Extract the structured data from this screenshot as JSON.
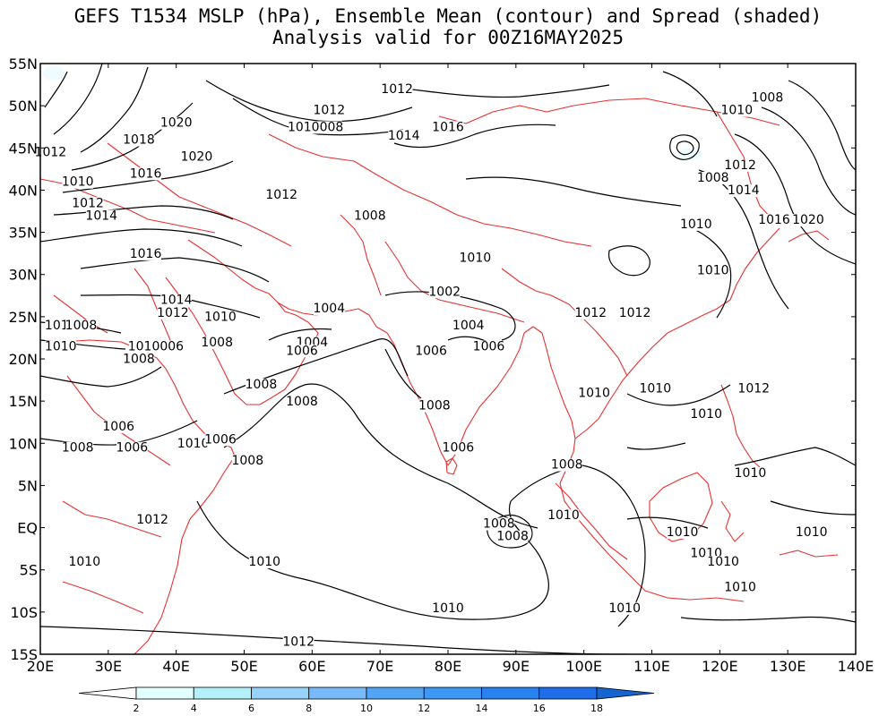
{
  "title_line1": "GEFS T1534 MSLP (hPa), Ensemble Mean (contour) and Spread (shaded)",
  "title_line2": "Analysis valid for 00Z16MAY2025",
  "map": {
    "lon_min": 20,
    "lon_max": 140,
    "lat_min": -15,
    "lat_max": 55,
    "lat_labels": [
      "55N",
      "50N",
      "45N",
      "40N",
      "35N",
      "30N",
      "25N",
      "20N",
      "15N",
      "10N",
      "5N",
      "EQ",
      "5S",
      "10S",
      "15S"
    ],
    "lon_labels": [
      "20E",
      "30E",
      "40E",
      "50E",
      "60E",
      "70E",
      "80E",
      "90E",
      "100E",
      "110E",
      "120E",
      "130E",
      "140E"
    ]
  },
  "contour_labels": [
    {
      "text": "1012",
      "lon": 72.5,
      "lat": 51.5
    },
    {
      "text": "1012",
      "lon": 62.5,
      "lat": 49.0
    },
    {
      "text": "1010008",
      "lon": 60.5,
      "lat": 47.0
    },
    {
      "text": "1014",
      "lon": 73.5,
      "lat": 46.0
    },
    {
      "text": "1016",
      "lon": 80.0,
      "lat": 47.0
    },
    {
      "text": "1020",
      "lon": 40.0,
      "lat": 47.5
    },
    {
      "text": "1018",
      "lon": 34.5,
      "lat": 45.5
    },
    {
      "text": "1020",
      "lon": 43.0,
      "lat": 43.5
    },
    {
      "text": "1016",
      "lon": 35.5,
      "lat": 41.5
    },
    {
      "text": "1012",
      "lon": 21.5,
      "lat": 44.0
    },
    {
      "text": "1010",
      "lon": 25.5,
      "lat": 40.5
    },
    {
      "text": "1012",
      "lon": 27.0,
      "lat": 38.0
    },
    {
      "text": "1014",
      "lon": 29.0,
      "lat": 36.5
    },
    {
      "text": "1012",
      "lon": 55.5,
      "lat": 39.0
    },
    {
      "text": "1008",
      "lon": 68.5,
      "lat": 36.5
    },
    {
      "text": "1016",
      "lon": 35.5,
      "lat": 32.0
    },
    {
      "text": "1014",
      "lon": 40.0,
      "lat": 26.5
    },
    {
      "text": "1012",
      "lon": 39.5,
      "lat": 25.0
    },
    {
      "text": "1010",
      "lon": 46.5,
      "lat": 24.5
    },
    {
      "text": "1010",
      "lon": 23.0,
      "lat": 23.5
    },
    {
      "text": "1008",
      "lon": 26.0,
      "lat": 23.5
    },
    {
      "text": "1010",
      "lon": 23.0,
      "lat": 21.0
    },
    {
      "text": "1010006",
      "lon": 37.0,
      "lat": 21.0
    },
    {
      "text": "1008",
      "lon": 46.0,
      "lat": 21.5
    },
    {
      "text": "1008",
      "lon": 34.5,
      "lat": 19.5
    },
    {
      "text": "1004",
      "lon": 62.5,
      "lat": 25.5
    },
    {
      "text": "1004",
      "lon": 60.0,
      "lat": 21.5
    },
    {
      "text": "1006",
      "lon": 58.5,
      "lat": 20.5
    },
    {
      "text": "1002",
      "lon": 79.5,
      "lat": 27.5
    },
    {
      "text": "1004",
      "lon": 83.0,
      "lat": 23.5
    },
    {
      "text": "1006",
      "lon": 77.5,
      "lat": 20.5
    },
    {
      "text": "1006",
      "lon": 86.0,
      "lat": 21.0
    },
    {
      "text": "1008",
      "lon": 52.5,
      "lat": 16.5
    },
    {
      "text": "1008",
      "lon": 58.5,
      "lat": 14.5
    },
    {
      "text": "1008",
      "lon": 78.0,
      "lat": 14.0
    },
    {
      "text": "1006",
      "lon": 31.5,
      "lat": 11.5
    },
    {
      "text": "1010",
      "lon": 42.5,
      "lat": 9.5
    },
    {
      "text": "1006",
      "lon": 46.5,
      "lat": 10.0
    },
    {
      "text": "1008",
      "lon": 25.5,
      "lat": 9.0
    },
    {
      "text": "1006",
      "lon": 33.5,
      "lat": 9.0
    },
    {
      "text": "1008",
      "lon": 50.5,
      "lat": 7.5
    },
    {
      "text": "1006",
      "lon": 81.5,
      "lat": 9.0
    },
    {
      "text": "1008",
      "lon": 97.5,
      "lat": 7.0
    },
    {
      "text": "1010",
      "lon": 97.0,
      "lat": 1.0
    },
    {
      "text": "1012",
      "lon": 36.5,
      "lat": 0.5
    },
    {
      "text": "1008",
      "lon": 87.5,
      "lat": 0.0
    },
    {
      "text": "1008",
      "lon": 89.5,
      "lat": -1.5
    },
    {
      "text": "1010",
      "lon": 26.5,
      "lat": -4.5
    },
    {
      "text": "1010",
      "lon": 53.0,
      "lat": -4.5
    },
    {
      "text": "1010",
      "lon": 80.0,
      "lat": -10.0
    },
    {
      "text": "1010",
      "lon": 106.0,
      "lat": -10.0
    },
    {
      "text": "1012",
      "lon": 58.0,
      "lat": -14.0
    },
    {
      "text": "1010",
      "lon": 101.5,
      "lat": 15.5
    },
    {
      "text": "1010",
      "lon": 110.5,
      "lat": 16.0
    },
    {
      "text": "1010",
      "lon": 118.0,
      "lat": 13.0
    },
    {
      "text": "1012",
      "lon": 125.0,
      "lat": 16.0
    },
    {
      "text": "1010",
      "lon": 124.5,
      "lat": 6.0
    },
    {
      "text": "1010",
      "lon": 114.5,
      "lat": -1.0
    },
    {
      "text": "1010",
      "lon": 118.0,
      "lat": -3.5
    },
    {
      "text": "1010",
      "lon": 120.5,
      "lat": -4.5
    },
    {
      "text": "1010",
      "lon": 133.5,
      "lat": -1.0
    },
    {
      "text": "1010",
      "lon": 123.0,
      "lat": -7.5
    },
    {
      "text": "1010",
      "lon": 84.0,
      "lat": 31.5
    },
    {
      "text": "1012",
      "lon": 101.0,
      "lat": 25.0
    },
    {
      "text": "1012",
      "lon": 107.5,
      "lat": 25.0
    },
    {
      "text": "1010",
      "lon": 119.0,
      "lat": 30.0
    },
    {
      "text": "1010",
      "lon": 116.5,
      "lat": 35.5
    },
    {
      "text": "1008",
      "lon": 119.0,
      "lat": 41.0
    },
    {
      "text": "1012",
      "lon": 123.0,
      "lat": 42.5
    },
    {
      "text": "1014",
      "lon": 123.5,
      "lat": 39.5
    },
    {
      "text": "1016",
      "lon": 128.0,
      "lat": 36.0
    },
    {
      "text": "1020",
      "lon": 133.0,
      "lat": 36.0
    },
    {
      "text": "1010",
      "lon": 122.5,
      "lat": 49.0
    },
    {
      "text": "1008",
      "lon": 127.0,
      "lat": 50.5
    }
  ],
  "colorbar": {
    "ticks": [
      "2",
      "4",
      "6",
      "8",
      "10",
      "12",
      "14",
      "16",
      "18"
    ],
    "colors": [
      "#ffffff",
      "#e1ffff",
      "#b4f0fa",
      "#96d2fa",
      "#78b9fa",
      "#50a5f5",
      "#3c97f5",
      "#2882f0",
      "#1e6eeb",
      "#1464d2"
    ]
  },
  "colors": {
    "contour": "#000000",
    "borders": "#e63232"
  }
}
